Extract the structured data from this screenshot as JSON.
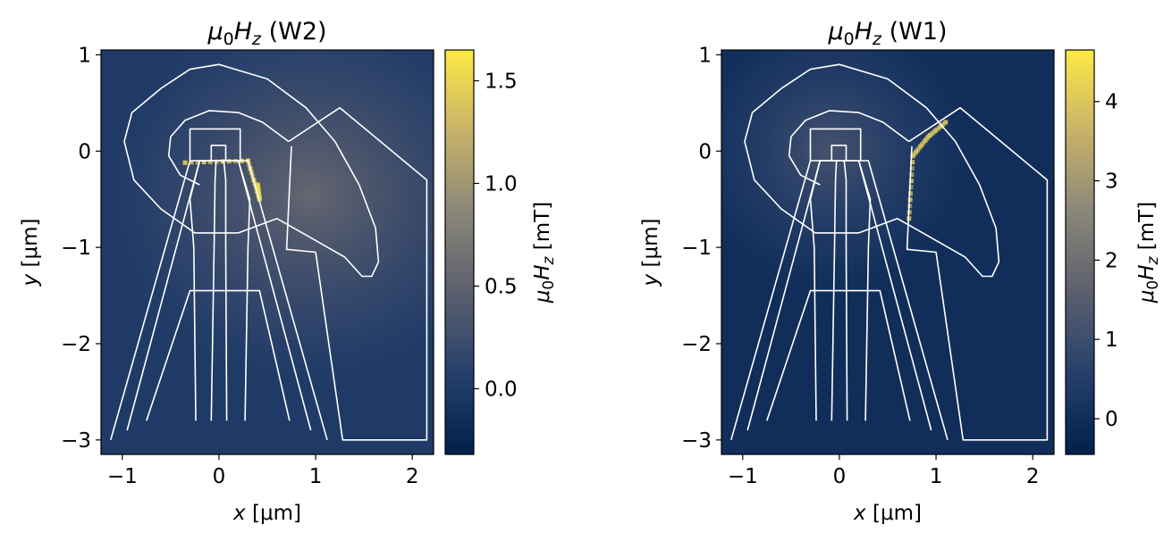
{
  "chart_data": [
    {
      "type": "heatmap",
      "title": "μ0Hz (W2)",
      "title_parts": {
        "mu": "μ",
        "sub0": "0",
        "H": "H",
        "subz": "z",
        "rest": " (W2)"
      },
      "xlabel": "x [μm]",
      "xlabel_parts": {
        "var": "x",
        "unit": " [μm]"
      },
      "ylabel": "y [μm]",
      "ylabel_parts": {
        "var": "y",
        "unit": " [μm]"
      },
      "xlim": [
        -1.22,
        2.22
      ],
      "ylim": [
        -3.15,
        1.05
      ],
      "xticks": [
        -1,
        0,
        1,
        2
      ],
      "xtick_labels": [
        "−1",
        "0",
        "1",
        "2"
      ],
      "yticks": [
        1,
        0,
        -1,
        -2,
        -3
      ],
      "ytick_labels": [
        "1",
        "0",
        "−1",
        "−2",
        "−3"
      ],
      "colorbar": {
        "label": "μ0Hz [mT]",
        "label_parts": {
          "mu": "μ",
          "sub0": "0",
          "H": "H",
          "subz": "z",
          "unit": " [mT]"
        },
        "range": [
          -0.32,
          1.65
        ],
        "ticks": [
          1.5,
          1.0,
          0.5,
          0.0
        ],
        "tick_labels": [
          "1.5",
          "1.0",
          "0.5",
          "0.0"
        ],
        "colormap": "cividis"
      },
      "background_level": 0.0,
      "peak_level": 0.55,
      "hotspot_level": 1.55,
      "field_source": [
        0.95,
        -0.45
      ],
      "outline_color": "#ffffff",
      "outlines": [
        [
          [
            -1.12,
            -3.0
          ],
          [
            -0.3,
            -0.1
          ],
          [
            0.3,
            -0.1
          ],
          [
            1.12,
            -3.0
          ]
        ],
        [
          [
            -0.95,
            -2.9
          ],
          [
            -0.2,
            -0.1
          ],
          [
            0.2,
            -0.1
          ],
          [
            0.95,
            -2.9
          ]
        ],
        [
          [
            -0.75,
            -2.8
          ],
          [
            -0.3,
            -1.45
          ],
          [
            0.42,
            -1.45
          ],
          [
            0.73,
            -2.8
          ]
        ],
        [
          [
            -0.2,
            -0.1
          ],
          [
            -0.3,
            -0.5
          ],
          [
            -0.26,
            -1.0
          ],
          [
            -0.24,
            -2.8
          ]
        ],
        [
          [
            0.2,
            -0.1
          ],
          [
            0.32,
            -0.5
          ],
          [
            0.3,
            -1.0
          ],
          [
            0.27,
            -2.8
          ]
        ],
        [
          [
            -0.08,
            -2.8
          ],
          [
            -0.05,
            -1.0
          ],
          [
            -0.04,
            -0.3
          ],
          [
            -0.03,
            -0.1
          ]
        ],
        [
          [
            0.08,
            -2.8
          ],
          [
            0.07,
            -1.0
          ],
          [
            0.07,
            -0.3
          ],
          [
            0.05,
            -0.1
          ]
        ],
        [
          [
            -0.08,
            -0.1
          ],
          [
            -0.08,
            0.06
          ],
          [
            0.07,
            0.06
          ],
          [
            0.07,
            -0.1
          ]
        ],
        [
          [
            -0.3,
            -0.1
          ],
          [
            -0.3,
            0.23
          ],
          [
            0.22,
            0.23
          ],
          [
            0.22,
            -0.1
          ]
        ],
        [
          [
            -0.6,
            0.65
          ],
          [
            -0.3,
            0.85
          ],
          [
            0.0,
            0.9
          ],
          [
            0.5,
            0.75
          ],
          [
            0.9,
            0.45
          ],
          [
            1.2,
            0.1
          ],
          [
            1.45,
            -0.35
          ],
          [
            1.62,
            -0.8
          ],
          [
            1.65,
            -1.15
          ],
          [
            1.58,
            -1.3
          ],
          [
            1.48,
            -1.3
          ],
          [
            1.3,
            -1.1
          ],
          [
            0.95,
            -0.9
          ],
          [
            0.6,
            -0.7
          ],
          [
            0.2,
            -0.85
          ],
          [
            -0.25,
            -0.85
          ],
          [
            -0.6,
            -0.6
          ],
          [
            -0.88,
            -0.3
          ],
          [
            -0.98,
            0.1
          ],
          [
            -0.9,
            0.4
          ],
          [
            -0.6,
            0.65
          ]
        ],
        [
          [
            0.72,
            0.1
          ],
          [
            0.45,
            0.3
          ],
          [
            0.2,
            0.4
          ],
          [
            -0.1,
            0.42
          ],
          [
            -0.35,
            0.32
          ],
          [
            -0.5,
            0.15
          ],
          [
            -0.52,
            -0.05
          ],
          [
            -0.4,
            -0.25
          ],
          [
            -0.2,
            -0.35
          ]
        ],
        [
          [
            0.72,
            0.1
          ],
          [
            1.25,
            0.45
          ],
          [
            2.15,
            -0.3
          ],
          [
            2.15,
            -3.0
          ],
          [
            1.28,
            -3.0
          ],
          [
            1.0,
            -1.05
          ],
          [
            0.7,
            -1.02
          ],
          [
            0.75,
            0.05
          ]
        ]
      ],
      "hotspot_path": [
        [
          -0.35,
          -0.12
        ],
        [
          0.3,
          -0.1
        ],
        [
          0.42,
          -0.5
        ],
        [
          0.4,
          -0.35
        ]
      ]
    },
    {
      "type": "heatmap",
      "title": "μ0Hz (W1)",
      "title_parts": {
        "mu": "μ",
        "sub0": "0",
        "H": "H",
        "subz": "z",
        "rest": " (W1)"
      },
      "xlabel": "x [μm]",
      "xlabel_parts": {
        "var": "x",
        "unit": " [μm]"
      },
      "ylabel": "y [μm]",
      "ylabel_parts": {
        "var": "y",
        "unit": " [μm]"
      },
      "xlim": [
        -1.22,
        2.22
      ],
      "ylim": [
        -3.15,
        1.05
      ],
      "xticks": [
        -1,
        0,
        1,
        2
      ],
      "xtick_labels": [
        "−1",
        "0",
        "1",
        "2"
      ],
      "yticks": [
        1,
        0,
        -1,
        -2,
        -3
      ],
      "ytick_labels": [
        "1",
        "0",
        "−1",
        "−2",
        "−3"
      ],
      "colorbar": {
        "label": "μ0Hz [mT]",
        "label_parts": {
          "mu": "μ",
          "sub0": "0",
          "H": "H",
          "subz": "z",
          "unit": " [mT]"
        },
        "range": [
          -0.45,
          4.65
        ],
        "ticks": [
          4,
          3,
          2,
          1,
          0
        ],
        "tick_labels": [
          "4",
          "3",
          "2",
          "1",
          "0"
        ],
        "colormap": "cividis"
      },
      "background_level": 0.0,
      "peak_level": 1.2,
      "hotspot_level": 4.0,
      "field_source": [
        -0.1,
        0.0
      ],
      "outline_color": "#ffffff",
      "outlines": [
        [
          [
            -1.12,
            -3.0
          ],
          [
            -0.3,
            -0.1
          ],
          [
            0.3,
            -0.1
          ],
          [
            1.12,
            -3.0
          ]
        ],
        [
          [
            -0.95,
            -2.9
          ],
          [
            -0.2,
            -0.1
          ],
          [
            0.2,
            -0.1
          ],
          [
            0.95,
            -2.9
          ]
        ],
        [
          [
            -0.75,
            -2.8
          ],
          [
            -0.3,
            -1.45
          ],
          [
            0.42,
            -1.45
          ],
          [
            0.73,
            -2.8
          ]
        ],
        [
          [
            -0.2,
            -0.1
          ],
          [
            -0.3,
            -0.5
          ],
          [
            -0.26,
            -1.0
          ],
          [
            -0.24,
            -2.8
          ]
        ],
        [
          [
            0.2,
            -0.1
          ],
          [
            0.32,
            -0.5
          ],
          [
            0.3,
            -1.0
          ],
          [
            0.27,
            -2.8
          ]
        ],
        [
          [
            -0.08,
            -2.8
          ],
          [
            -0.05,
            -1.0
          ],
          [
            -0.04,
            -0.3
          ],
          [
            -0.03,
            -0.1
          ]
        ],
        [
          [
            0.08,
            -2.8
          ],
          [
            0.07,
            -1.0
          ],
          [
            0.07,
            -0.3
          ],
          [
            0.05,
            -0.1
          ]
        ],
        [
          [
            -0.08,
            -0.1
          ],
          [
            -0.08,
            0.06
          ],
          [
            0.07,
            0.06
          ],
          [
            0.07,
            -0.1
          ]
        ],
        [
          [
            -0.3,
            -0.1
          ],
          [
            -0.3,
            0.23
          ],
          [
            0.22,
            0.23
          ],
          [
            0.22,
            -0.1
          ]
        ],
        [
          [
            -0.6,
            0.65
          ],
          [
            -0.3,
            0.85
          ],
          [
            0.0,
            0.9
          ],
          [
            0.5,
            0.75
          ],
          [
            0.9,
            0.45
          ],
          [
            1.2,
            0.1
          ],
          [
            1.45,
            -0.35
          ],
          [
            1.62,
            -0.8
          ],
          [
            1.65,
            -1.15
          ],
          [
            1.58,
            -1.3
          ],
          [
            1.48,
            -1.3
          ],
          [
            1.3,
            -1.1
          ],
          [
            0.95,
            -0.9
          ],
          [
            0.6,
            -0.7
          ],
          [
            0.2,
            -0.85
          ],
          [
            -0.25,
            -0.85
          ],
          [
            -0.6,
            -0.6
          ],
          [
            -0.88,
            -0.3
          ],
          [
            -0.98,
            0.1
          ],
          [
            -0.9,
            0.4
          ],
          [
            -0.6,
            0.65
          ]
        ],
        [
          [
            0.72,
            0.1
          ],
          [
            0.45,
            0.3
          ],
          [
            0.2,
            0.4
          ],
          [
            -0.1,
            0.42
          ],
          [
            -0.35,
            0.32
          ],
          [
            -0.5,
            0.15
          ],
          [
            -0.52,
            -0.05
          ],
          [
            -0.4,
            -0.25
          ],
          [
            -0.2,
            -0.35
          ]
        ],
        [
          [
            0.72,
            0.1
          ],
          [
            1.25,
            0.45
          ],
          [
            2.15,
            -0.3
          ],
          [
            2.15,
            -3.0
          ],
          [
            1.28,
            -3.0
          ],
          [
            1.0,
            -1.05
          ],
          [
            0.7,
            -1.02
          ],
          [
            0.75,
            0.05
          ]
        ]
      ],
      "hotspot_path": [
        [
          0.72,
          -0.7
        ],
        [
          0.76,
          -0.05
        ],
        [
          0.92,
          0.15
        ],
        [
          1.1,
          0.3
        ]
      ]
    }
  ]
}
